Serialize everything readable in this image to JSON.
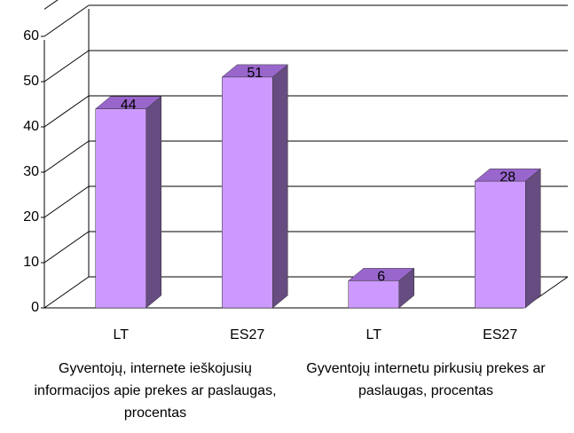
{
  "chart_data": {
    "type": "bar3d",
    "categories": [
      "LT",
      "ES27",
      "LT",
      "ES27"
    ],
    "groups": [
      "Gyventojų, internete ieškojusių informacijos apie prekes ar paslaugas, procentas",
      "Gyventojų internetu pirkusių prekes ar paslaugas, procentas"
    ],
    "values": [
      44,
      51,
      6,
      28
    ],
    "color": "#cc99ff",
    "ylim": [
      0,
      60
    ],
    "yticks": [
      0,
      10,
      20,
      30,
      40,
      50,
      60
    ],
    "grid": true
  }
}
